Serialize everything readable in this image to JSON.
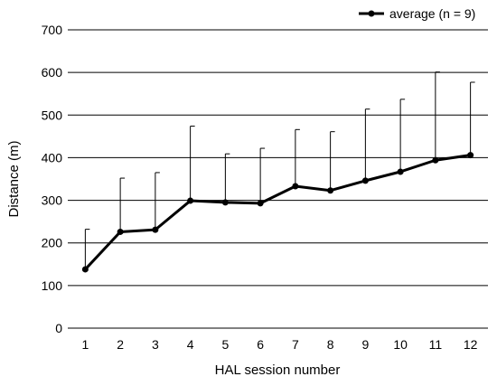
{
  "chart_data": {
    "type": "line",
    "title": "",
    "xlabel": "HAL session number",
    "ylabel": "Distance (m)",
    "ylim": [
      0,
      700
    ],
    "yticks": [
      0,
      100,
      200,
      300,
      400,
      500,
      600,
      700
    ],
    "x": [
      1,
      2,
      3,
      4,
      5,
      6,
      7,
      8,
      9,
      10,
      11,
      12
    ],
    "grid": "horizontal",
    "legend_position": "top-right",
    "series": [
      {
        "name": "average (n = 9)",
        "values": [
          138,
          226,
          231,
          299,
          295,
          293,
          333,
          323,
          346,
          367,
          394,
          406
        ],
        "error_upper": [
          232,
          352,
          365,
          474,
          409,
          422,
          466,
          461,
          514,
          537,
          601,
          577
        ]
      }
    ]
  },
  "colors": {
    "line": "#000000",
    "grid": "#000000",
    "text": "#000000"
  }
}
